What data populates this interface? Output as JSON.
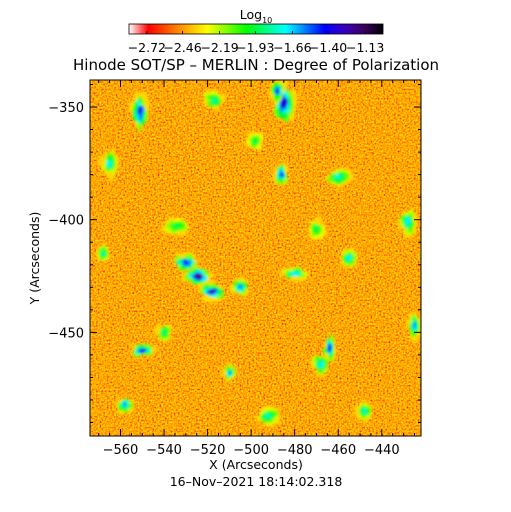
{
  "chart_data": {
    "type": "heatmap",
    "title": "Hinode SOT/SP – MERLIN : Degree of Polarization",
    "xlabel": "X (Arcseconds)",
    "ylabel": "Y (Arcseconds)",
    "timestamp": "16–Nov–2021 18:14:02.318",
    "xlim": [
      -574,
      -422
    ],
    "ylim": [
      -496,
      -338
    ],
    "x_ticks": [
      -560,
      -540,
      -520,
      -500,
      -480,
      -460,
      -440
    ],
    "x_tick_labels": [
      "−560",
      "−540",
      "−520",
      "−500",
      "−480",
      "−460",
      "−440"
    ],
    "y_ticks": [
      -350,
      -400,
      -450
    ],
    "y_tick_labels": [
      "−350",
      "−400",
      "−450"
    ],
    "colorbar": {
      "label_base": "Log",
      "label_sub": "10",
      "range": [
        -2.85,
        -1.0
      ],
      "ticks": [
        -2.72,
        -2.46,
        -2.19,
        -1.93,
        -1.66,
        -1.4,
        -1.13
      ],
      "tick_labels": [
        "−2.72",
        "−2.46",
        "−2.19",
        "−1.93",
        "−1.66",
        "−1.40",
        "−1.13"
      ],
      "colormap": [
        "#ffffff",
        "#ff0000",
        "#ff5a00",
        "#ffb000",
        "#ffff00",
        "#7fff00",
        "#00ff00",
        "#00ff80",
        "#00ffff",
        "#0080ff",
        "#0000ff",
        "#3a00c0",
        "#3c0060",
        "#000000"
      ]
    },
    "features": [
      {
        "x": -524,
        "y": -425,
        "peak": -1.25,
        "sx": 3.5,
        "sy": 2.0
      },
      {
        "x": -518,
        "y": -432,
        "peak": -1.3,
        "sx": 3.0,
        "sy": 2.0
      },
      {
        "x": -530,
        "y": -419,
        "peak": -1.45,
        "sx": 3.0,
        "sy": 2.0
      },
      {
        "x": -551,
        "y": -352,
        "peak": -1.4,
        "sx": 2.0,
        "sy": 4.5
      },
      {
        "x": -485,
        "y": -348,
        "peak": -1.35,
        "sx": 2.5,
        "sy": 5.0
      },
      {
        "x": -488,
        "y": -343,
        "peak": -1.45,
        "sx": 1.8,
        "sy": 2.5
      },
      {
        "x": -550,
        "y": -458,
        "peak": -1.4,
        "sx": 3.0,
        "sy": 1.5
      },
      {
        "x": -464,
        "y": -457,
        "peak": -1.4,
        "sx": 1.5,
        "sy": 3.0
      },
      {
        "x": -468,
        "y": -464,
        "peak": -1.7,
        "sx": 2.0,
        "sy": 2.5
      },
      {
        "x": -486,
        "y": -380,
        "peak": -1.5,
        "sx": 1.8,
        "sy": 2.5
      },
      {
        "x": -505,
        "y": -430,
        "peak": -1.6,
        "sx": 2.0,
        "sy": 2.0
      },
      {
        "x": -480,
        "y": -424,
        "peak": -1.7,
        "sx": 3.0,
        "sy": 1.5
      },
      {
        "x": -460,
        "y": -381,
        "peak": -1.75,
        "sx": 3.0,
        "sy": 2.0
      },
      {
        "x": -455,
        "y": -417,
        "peak": -1.7,
        "sx": 2.0,
        "sy": 2.0
      },
      {
        "x": -428,
        "y": -401,
        "peak": -1.7,
        "sx": 2.0,
        "sy": 3.0
      },
      {
        "x": -425,
        "y": -447,
        "peak": -1.6,
        "sx": 1.5,
        "sy": 3.0
      },
      {
        "x": -565,
        "y": -375,
        "peak": -1.75,
        "sx": 2.0,
        "sy": 3.0
      },
      {
        "x": -558,
        "y": -482,
        "peak": -1.6,
        "sx": 2.0,
        "sy": 2.0
      },
      {
        "x": -517,
        "y": -347,
        "peak": -1.8,
        "sx": 2.5,
        "sy": 2.0
      },
      {
        "x": -510,
        "y": -468,
        "peak": -1.6,
        "sx": 1.5,
        "sy": 2.0
      },
      {
        "x": -492,
        "y": -487,
        "peak": -1.8,
        "sx": 3.0,
        "sy": 2.0
      },
      {
        "x": -448,
        "y": -485,
        "peak": -1.75,
        "sx": 2.0,
        "sy": 2.0
      },
      {
        "x": -534,
        "y": -403,
        "peak": -1.9,
        "sx": 3.0,
        "sy": 2.0
      },
      {
        "x": -568,
        "y": -415,
        "peak": -1.8,
        "sx": 1.5,
        "sy": 2.0
      },
      {
        "x": -498,
        "y": -365,
        "peak": -1.9,
        "sx": 2.0,
        "sy": 2.0
      },
      {
        "x": -470,
        "y": -404,
        "peak": -1.9,
        "sx": 2.0,
        "sy": 2.5
      },
      {
        "x": -540,
        "y": -450,
        "peak": -1.85,
        "sx": 2.0,
        "sy": 2.0
      }
    ]
  }
}
